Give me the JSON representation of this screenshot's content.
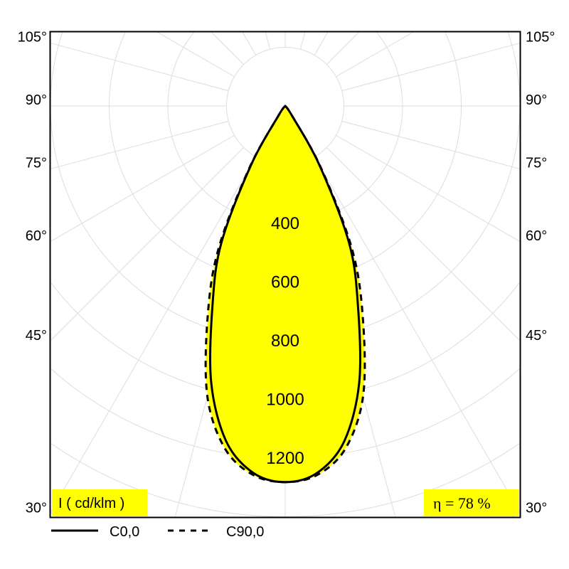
{
  "chart_data": {
    "type": "polar",
    "title": "",
    "unit_label": "I ( cd/klm )",
    "efficiency_label": "η = 78 %",
    "radial_ticks": [
      400,
      600,
      800,
      1000,
      1200
    ],
    "radial_grid_step": 200,
    "angle_grid_step_deg": 15,
    "angle_labels_left": [
      "105°",
      "90°",
      "75°",
      "60°",
      "45°",
      "30°"
    ],
    "angle_labels_right": [
      "105°",
      "90°",
      "75°",
      "60°",
      "45°",
      "30°"
    ],
    "angle_label_values": [
      105,
      90,
      75,
      60,
      45,
      30
    ],
    "angles_deg": [
      0,
      5,
      10,
      15,
      20,
      25,
      30,
      35,
      40
    ],
    "series": [
      {
        "name": "C0,0",
        "style": "solid",
        "values": [
          1282,
          1255,
          1160,
          975,
          725,
          515,
          235,
          40,
          0
        ]
      },
      {
        "name": "C90,0",
        "style": "dashed",
        "values": [
          1282,
          1262,
          1185,
          1025,
          775,
          540,
          245,
          40,
          0
        ]
      }
    ],
    "fill_color": "#ffff00",
    "line_color": "#000000",
    "grid_color": "#dddddd"
  }
}
